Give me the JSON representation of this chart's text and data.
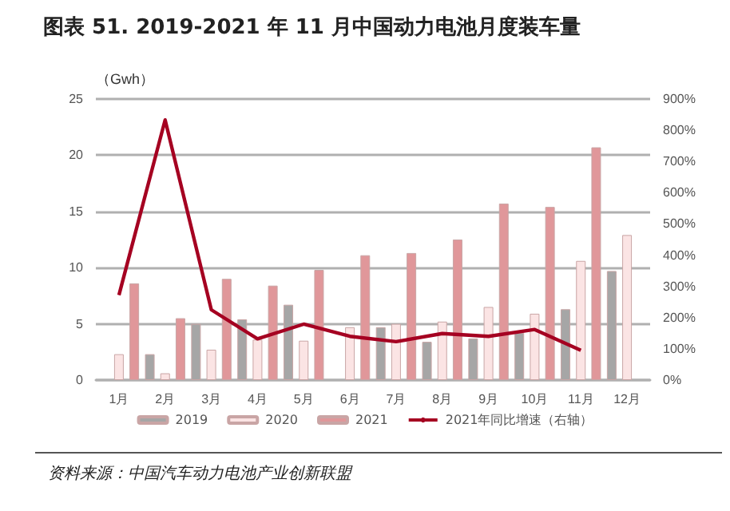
{
  "chart_data": {
    "type": "bar",
    "title": "图表 51. 2019-2021 年 11 月中国动力电池月度装车量",
    "ylabel": "（Gwh）",
    "categories": [
      "1月",
      "2月",
      "3月",
      "4月",
      "5月",
      "6月",
      "7月",
      "8月",
      "9月",
      "10月",
      "11月",
      "12月"
    ],
    "series": [
      {
        "name": "2019",
        "color": "#a6a6a6",
        "values": [
          null,
          2.3,
          5.0,
          5.4,
          6.7,
          null,
          4.7,
          3.4,
          3.7,
          4.2,
          6.3,
          9.7
        ]
      },
      {
        "name": "2020",
        "color": "#fbe4e4",
        "values": [
          2.3,
          0.6,
          2.7,
          3.6,
          3.5,
          4.7,
          5.0,
          5.2,
          6.5,
          5.9,
          10.6,
          12.9
        ]
      },
      {
        "name": "2021",
        "color": "#e0979a",
        "values": [
          8.6,
          5.5,
          9.0,
          8.4,
          9.8,
          11.1,
          11.3,
          12.5,
          15.7,
          15.4,
          20.7,
          null
        ]
      },
      {
        "name": "2021年同比增速（右轴）",
        "type": "line",
        "axis": "y2",
        "color": "#a50021",
        "marker": "none",
        "values": [
          272,
          833,
          225,
          132,
          179,
          140,
          123,
          149,
          140,
          162,
          95,
          null
        ]
      }
    ],
    "ylim": [
      0,
      25
    ],
    "yticks": [
      0,
      5,
      10,
      15,
      20,
      25
    ],
    "y2lim": [
      0,
      900
    ],
    "y2ticks": [
      {
        "value": 0,
        "label": "0%"
      },
      {
        "value": 100,
        "label": "100%"
      },
      {
        "value": 200,
        "label": "200%"
      },
      {
        "value": 300,
        "label": "300%"
      },
      {
        "value": 400,
        "label": "400%"
      },
      {
        "value": 500,
        "label": "500%"
      },
      {
        "value": 600,
        "label": "600%"
      },
      {
        "value": 700,
        "label": "700%"
      },
      {
        "value": 800,
        "label": "800%"
      },
      {
        "value": 900,
        "label": "900%"
      }
    ],
    "grid": "y",
    "legend": "bottom",
    "annotations": [
      "资料来源：中国汽车动力电池产业创新联盟"
    ]
  }
}
